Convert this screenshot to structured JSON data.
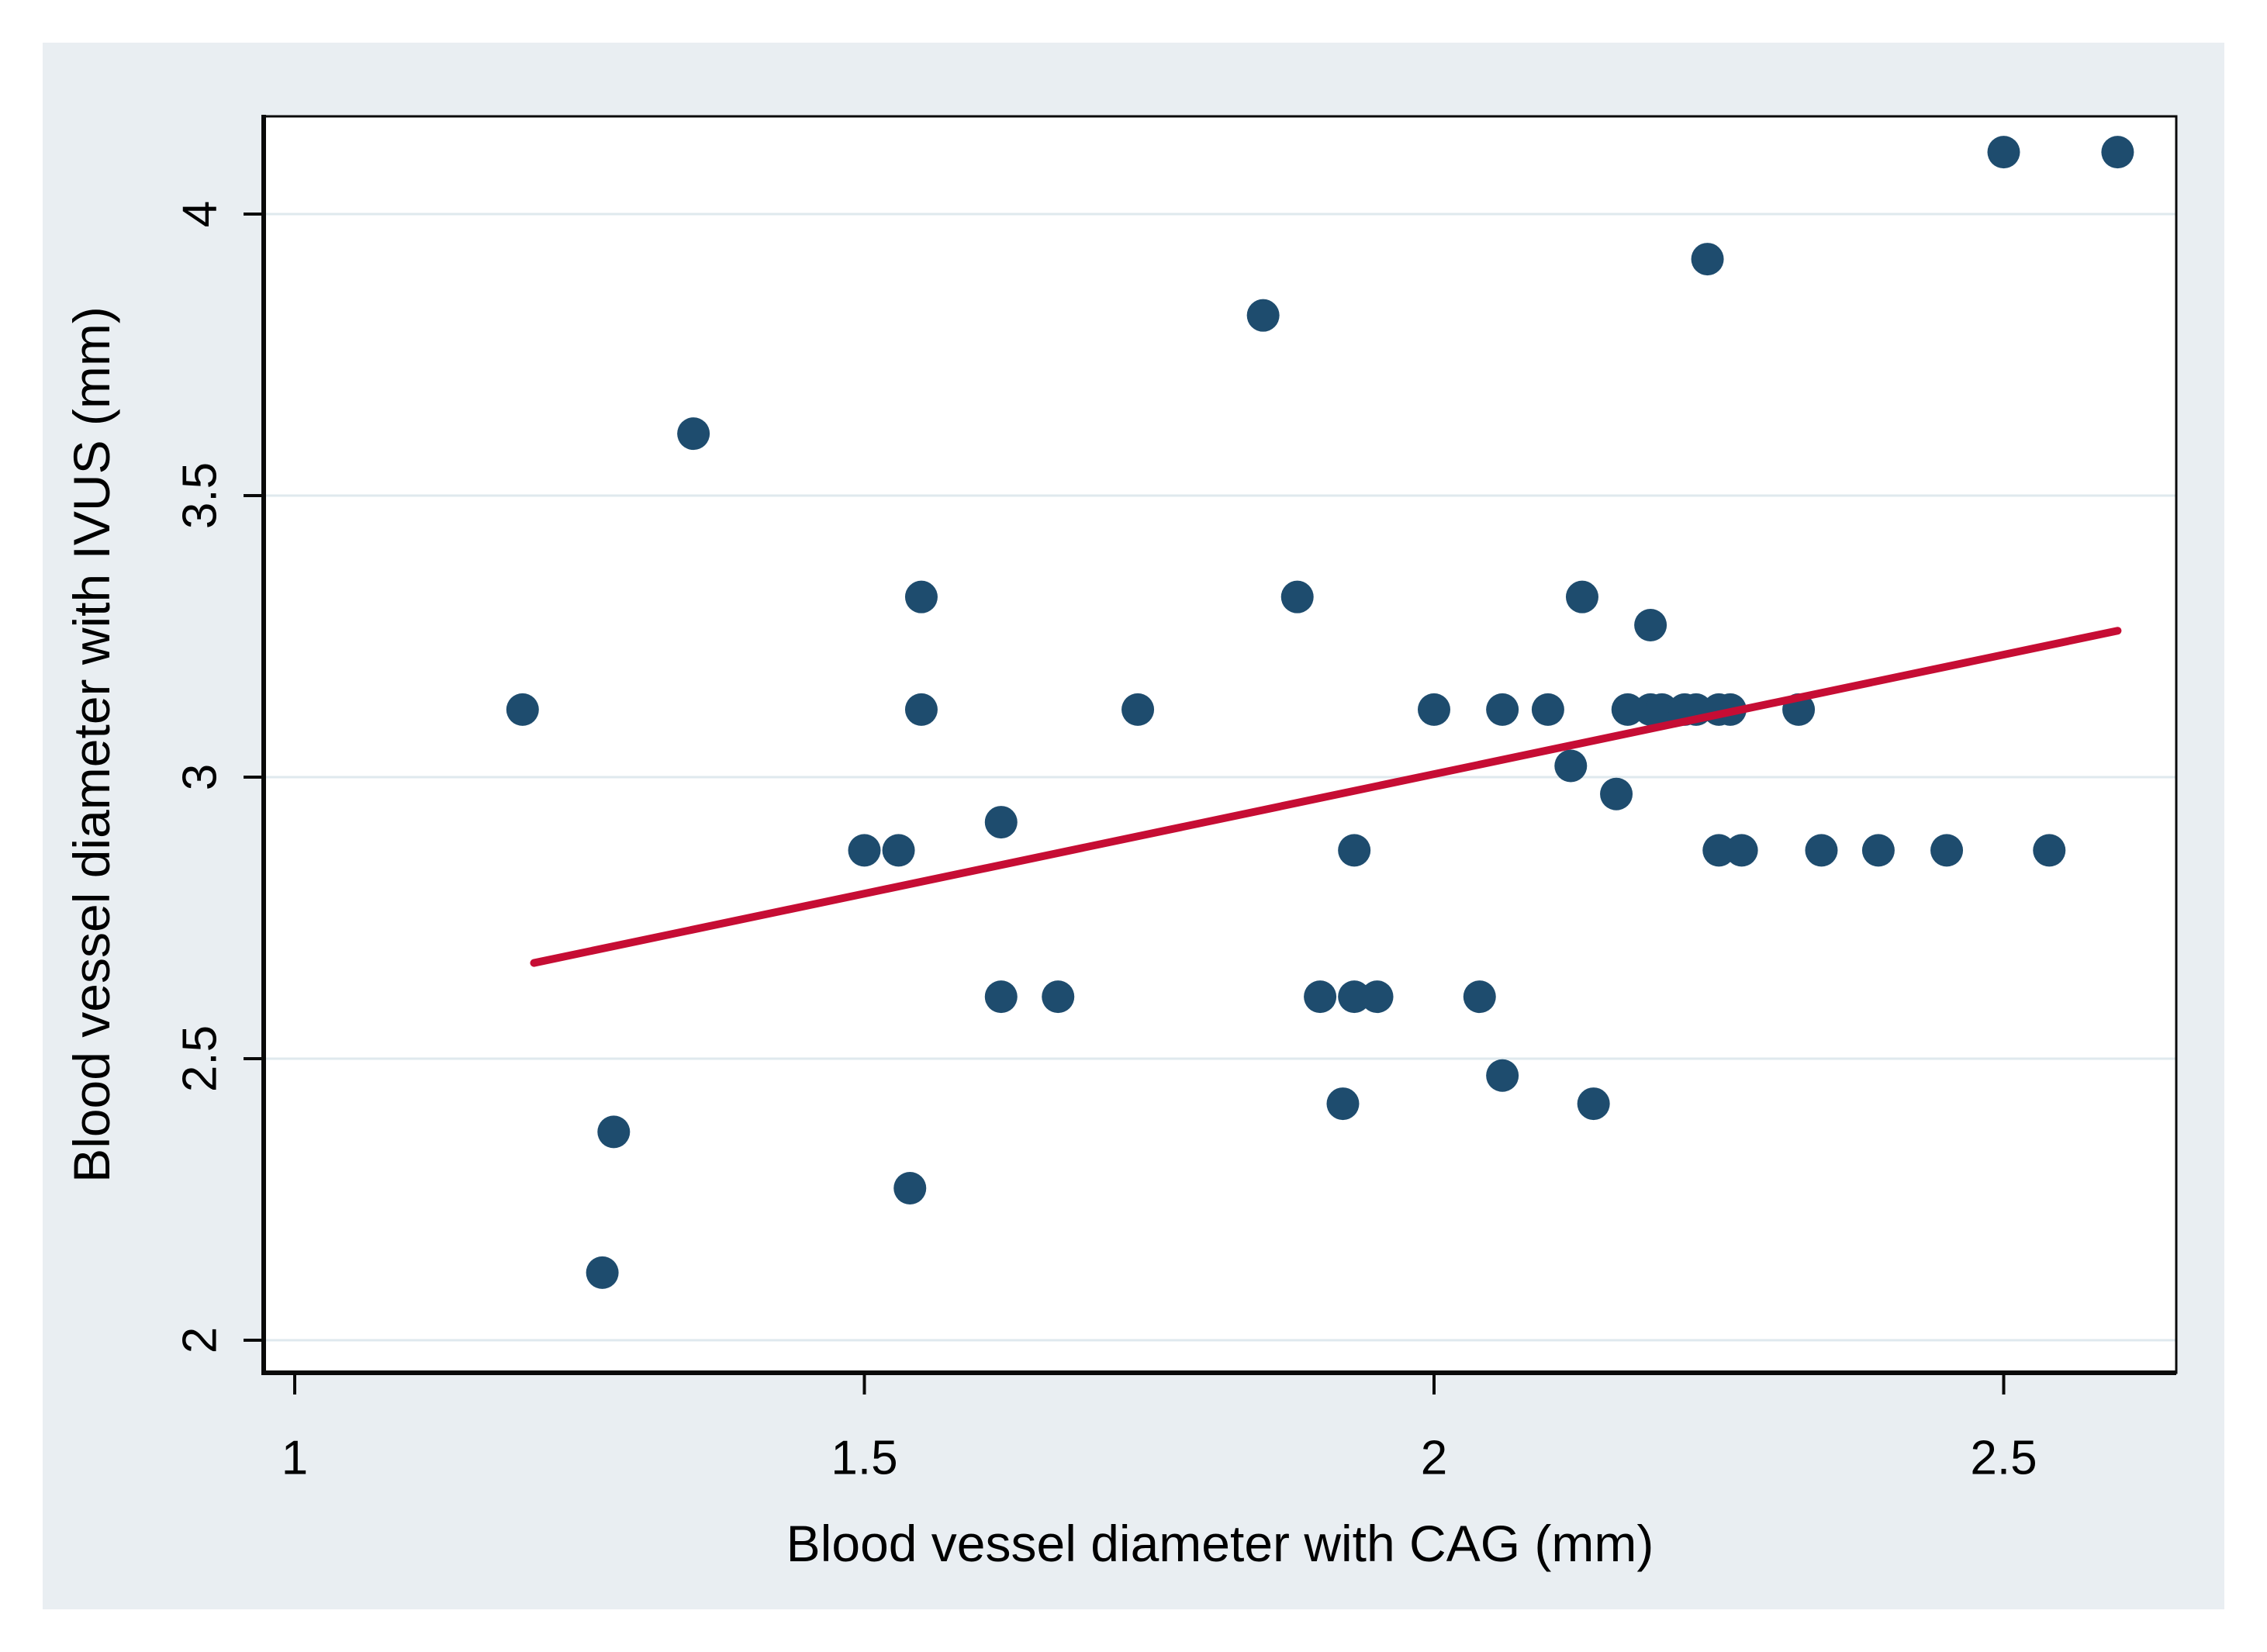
{
  "chart_data": {
    "type": "scatter",
    "title": "",
    "xlabel": "Blood vessel diameter with CAG (mm)",
    "ylabel": "Blood vessel diameter with IVUS (mm)",
    "x_tick_values": [
      1,
      1.5,
      2,
      2.5
    ],
    "x_tick_labels": [
      "1",
      "1.5",
      "2",
      "2.5"
    ],
    "y_tick_values": [
      2,
      2.5,
      3,
      3.5,
      4
    ],
    "y_tick_labels": [
      "2",
      "2.5",
      "3",
      "3.5",
      "4"
    ],
    "xlim": [
      0.97,
      2.65
    ],
    "ylim": [
      1.95,
      4.17
    ],
    "grid": "horizontal-only",
    "legend": "none",
    "points": [
      [
        1.2,
        3.12
      ],
      [
        1.35,
        3.61
      ],
      [
        1.28,
        2.37
      ],
      [
        1.27,
        2.12
      ],
      [
        1.5,
        2.87
      ],
      [
        1.53,
        2.87
      ],
      [
        1.54,
        2.27
      ],
      [
        1.55,
        3.32
      ],
      [
        1.55,
        3.12
      ],
      [
        1.62,
        2.92
      ],
      [
        1.62,
        2.61
      ],
      [
        1.67,
        2.61
      ],
      [
        1.74,
        3.12
      ],
      [
        1.85,
        3.82
      ],
      [
        1.88,
        3.32
      ],
      [
        1.9,
        2.61
      ],
      [
        1.93,
        2.61
      ],
      [
        1.95,
        2.61
      ],
      [
        1.93,
        2.87
      ],
      [
        1.92,
        2.42
      ],
      [
        2.0,
        3.12
      ],
      [
        2.06,
        3.12
      ],
      [
        2.1,
        3.12
      ],
      [
        2.04,
        2.61
      ],
      [
        2.06,
        2.47
      ],
      [
        2.14,
        2.42
      ],
      [
        2.13,
        3.32
      ],
      [
        2.19,
        3.27
      ],
      [
        2.12,
        3.02
      ],
      [
        2.16,
        2.97
      ],
      [
        2.17,
        3.12
      ],
      [
        2.19,
        3.12
      ],
      [
        2.2,
        3.12
      ],
      [
        2.22,
        3.12
      ],
      [
        2.23,
        3.12
      ],
      [
        2.25,
        3.12
      ],
      [
        2.26,
        3.12
      ],
      [
        2.32,
        3.12
      ],
      [
        2.25,
        2.87
      ],
      [
        2.27,
        2.87
      ],
      [
        2.34,
        2.87
      ],
      [
        2.39,
        2.87
      ],
      [
        2.45,
        2.87
      ],
      [
        2.54,
        2.87
      ],
      [
        2.24,
        3.92
      ],
      [
        2.5,
        4.11
      ],
      [
        2.6,
        4.11
      ]
    ],
    "trendline": {
      "x1": 1.21,
      "y1": 2.67,
      "x2": 2.6,
      "y2": 3.26
    },
    "colors": {
      "marker": "#1e4c6e",
      "trendline": "#c60d34",
      "canvas_background": "#e9eef2",
      "plot_background": "#ffffff",
      "gridline": "#dfe9ee",
      "axis": "#0a0a0a",
      "text": "#000000"
    }
  }
}
